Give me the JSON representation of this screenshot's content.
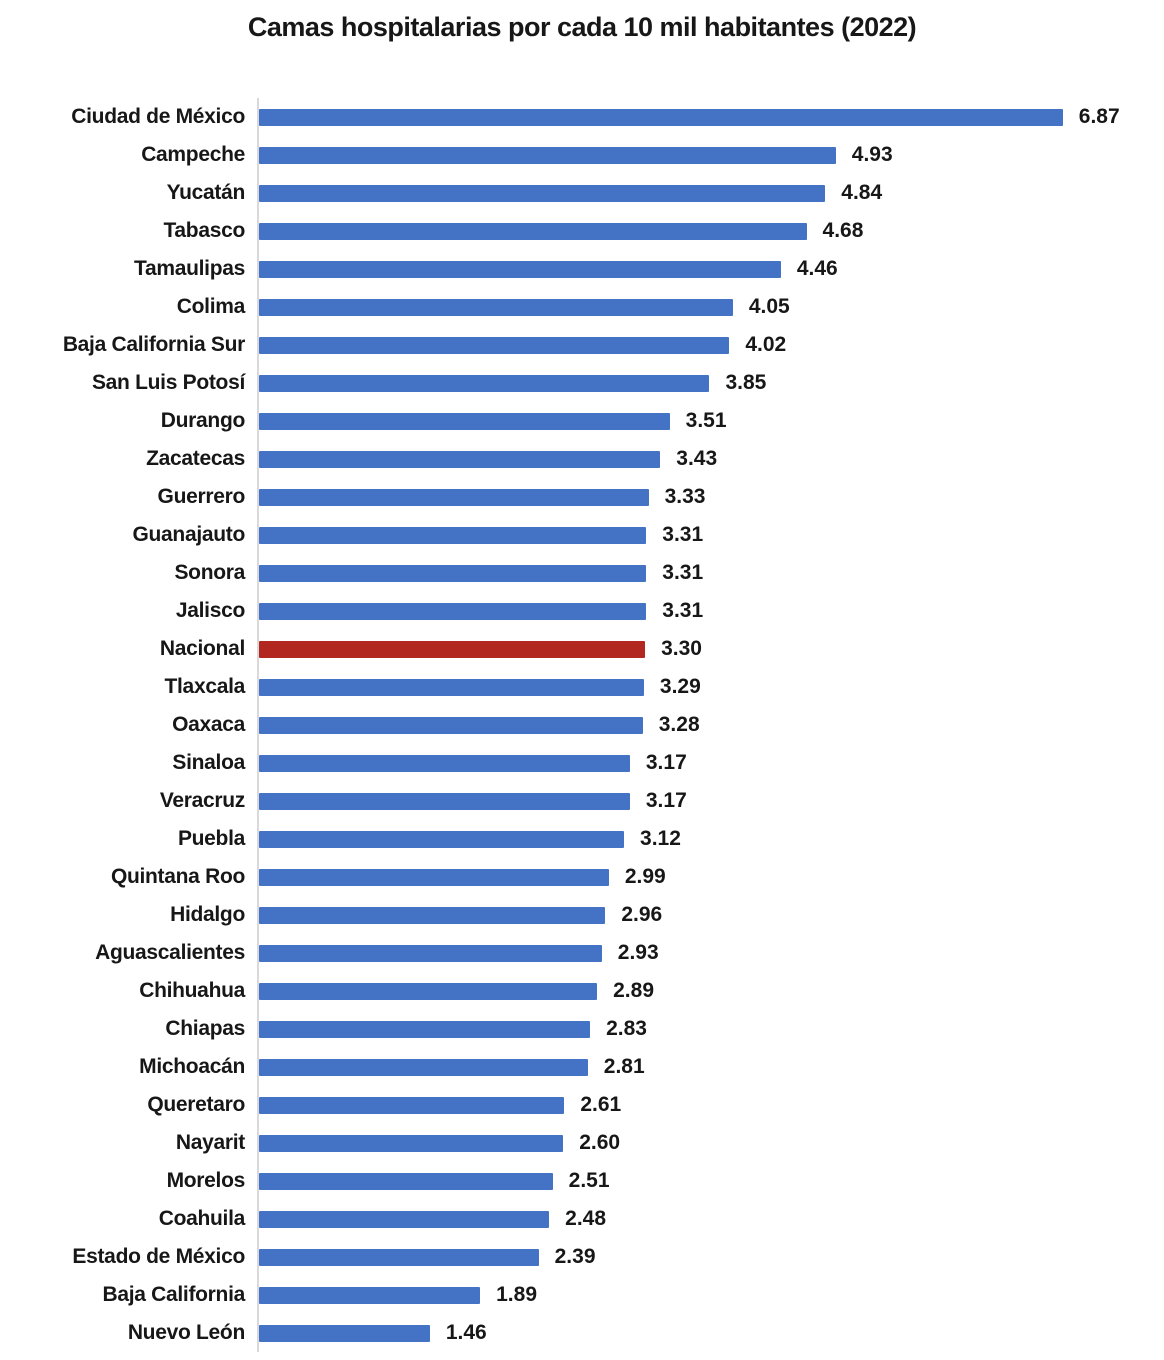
{
  "chart_data": {
    "type": "bar",
    "orientation": "horizontal",
    "title": "Camas hospitalarias por cada 10 mil habitantes (2022)",
    "categories": [
      "Ciudad de México",
      "Campeche",
      "Yucatán",
      "Tabasco",
      "Tamaulipas",
      "Colima",
      "Baja California Sur",
      "San Luis Potosí",
      "Durango",
      "Zacatecas",
      "Guerrero",
      "Guanajauto",
      "Sonora",
      "Jalisco",
      "Nacional",
      "Tlaxcala",
      "Oaxaca",
      "Sinaloa",
      "Veracruz",
      "Puebla",
      "Quintana Roo",
      "Hidalgo",
      "Aguascalientes",
      "Chihuahua",
      "Chiapas",
      "Michoacán",
      "Queretaro",
      "Nayarit",
      "Morelos",
      "Coahuila",
      "Estado de México",
      "Baja California",
      "Nuevo León"
    ],
    "values": [
      6.87,
      4.93,
      4.84,
      4.68,
      4.46,
      4.05,
      4.02,
      3.85,
      3.51,
      3.43,
      3.33,
      3.31,
      3.31,
      3.31,
      3.3,
      3.29,
      3.28,
      3.17,
      3.17,
      3.12,
      2.99,
      2.96,
      2.93,
      2.89,
      2.83,
      2.81,
      2.61,
      2.6,
      2.51,
      2.48,
      2.39,
      1.89,
      1.46
    ],
    "value_decimals": 2,
    "highlighted_category": "Nacional",
    "highlight_index": 14,
    "xlim": [
      0,
      7.7
    ],
    "xlabel": "",
    "ylabel": "",
    "grid": false,
    "legend": false,
    "data_labels": true,
    "bar_color": "#4472C4",
    "highlight_color": "#B2271F",
    "axis_line_color": "#D9D9D9",
    "text_color": "#171717"
  }
}
